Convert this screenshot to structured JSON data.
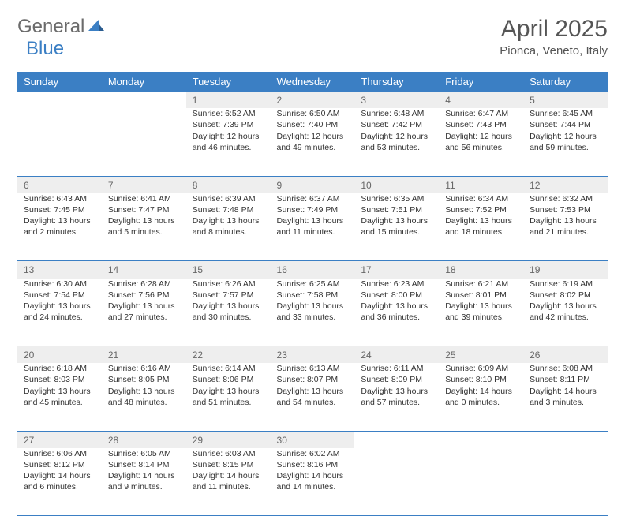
{
  "brand": {
    "part1": "General",
    "part2": "Blue"
  },
  "title": "April 2025",
  "location": "Pionca, Veneto, Italy",
  "colors": {
    "header_bg": "#3b7fc4",
    "header_text": "#ffffff",
    "daynum_bg": "#eeeeee",
    "daynum_text": "#666666",
    "body_text": "#333333",
    "divider": "#3b7fc4",
    "page_bg": "#ffffff",
    "logo_gray": "#6b6b6b",
    "logo_blue": "#3b7fc4"
  },
  "day_headers": [
    "Sunday",
    "Monday",
    "Tuesday",
    "Wednesday",
    "Thursday",
    "Friday",
    "Saturday"
  ],
  "weeks": [
    [
      null,
      null,
      {
        "n": "1",
        "sr": "Sunrise: 6:52 AM",
        "ss": "Sunset: 7:39 PM",
        "d1": "Daylight: 12 hours",
        "d2": "and 46 minutes."
      },
      {
        "n": "2",
        "sr": "Sunrise: 6:50 AM",
        "ss": "Sunset: 7:40 PM",
        "d1": "Daylight: 12 hours",
        "d2": "and 49 minutes."
      },
      {
        "n": "3",
        "sr": "Sunrise: 6:48 AM",
        "ss": "Sunset: 7:42 PM",
        "d1": "Daylight: 12 hours",
        "d2": "and 53 minutes."
      },
      {
        "n": "4",
        "sr": "Sunrise: 6:47 AM",
        "ss": "Sunset: 7:43 PM",
        "d1": "Daylight: 12 hours",
        "d2": "and 56 minutes."
      },
      {
        "n": "5",
        "sr": "Sunrise: 6:45 AM",
        "ss": "Sunset: 7:44 PM",
        "d1": "Daylight: 12 hours",
        "d2": "and 59 minutes."
      }
    ],
    [
      {
        "n": "6",
        "sr": "Sunrise: 6:43 AM",
        "ss": "Sunset: 7:45 PM",
        "d1": "Daylight: 13 hours",
        "d2": "and 2 minutes."
      },
      {
        "n": "7",
        "sr": "Sunrise: 6:41 AM",
        "ss": "Sunset: 7:47 PM",
        "d1": "Daylight: 13 hours",
        "d2": "and 5 minutes."
      },
      {
        "n": "8",
        "sr": "Sunrise: 6:39 AM",
        "ss": "Sunset: 7:48 PM",
        "d1": "Daylight: 13 hours",
        "d2": "and 8 minutes."
      },
      {
        "n": "9",
        "sr": "Sunrise: 6:37 AM",
        "ss": "Sunset: 7:49 PM",
        "d1": "Daylight: 13 hours",
        "d2": "and 11 minutes."
      },
      {
        "n": "10",
        "sr": "Sunrise: 6:35 AM",
        "ss": "Sunset: 7:51 PM",
        "d1": "Daylight: 13 hours",
        "d2": "and 15 minutes."
      },
      {
        "n": "11",
        "sr": "Sunrise: 6:34 AM",
        "ss": "Sunset: 7:52 PM",
        "d1": "Daylight: 13 hours",
        "d2": "and 18 minutes."
      },
      {
        "n": "12",
        "sr": "Sunrise: 6:32 AM",
        "ss": "Sunset: 7:53 PM",
        "d1": "Daylight: 13 hours",
        "d2": "and 21 minutes."
      }
    ],
    [
      {
        "n": "13",
        "sr": "Sunrise: 6:30 AM",
        "ss": "Sunset: 7:54 PM",
        "d1": "Daylight: 13 hours",
        "d2": "and 24 minutes."
      },
      {
        "n": "14",
        "sr": "Sunrise: 6:28 AM",
        "ss": "Sunset: 7:56 PM",
        "d1": "Daylight: 13 hours",
        "d2": "and 27 minutes."
      },
      {
        "n": "15",
        "sr": "Sunrise: 6:26 AM",
        "ss": "Sunset: 7:57 PM",
        "d1": "Daylight: 13 hours",
        "d2": "and 30 minutes."
      },
      {
        "n": "16",
        "sr": "Sunrise: 6:25 AM",
        "ss": "Sunset: 7:58 PM",
        "d1": "Daylight: 13 hours",
        "d2": "and 33 minutes."
      },
      {
        "n": "17",
        "sr": "Sunrise: 6:23 AM",
        "ss": "Sunset: 8:00 PM",
        "d1": "Daylight: 13 hours",
        "d2": "and 36 minutes."
      },
      {
        "n": "18",
        "sr": "Sunrise: 6:21 AM",
        "ss": "Sunset: 8:01 PM",
        "d1": "Daylight: 13 hours",
        "d2": "and 39 minutes."
      },
      {
        "n": "19",
        "sr": "Sunrise: 6:19 AM",
        "ss": "Sunset: 8:02 PM",
        "d1": "Daylight: 13 hours",
        "d2": "and 42 minutes."
      }
    ],
    [
      {
        "n": "20",
        "sr": "Sunrise: 6:18 AM",
        "ss": "Sunset: 8:03 PM",
        "d1": "Daylight: 13 hours",
        "d2": "and 45 minutes."
      },
      {
        "n": "21",
        "sr": "Sunrise: 6:16 AM",
        "ss": "Sunset: 8:05 PM",
        "d1": "Daylight: 13 hours",
        "d2": "and 48 minutes."
      },
      {
        "n": "22",
        "sr": "Sunrise: 6:14 AM",
        "ss": "Sunset: 8:06 PM",
        "d1": "Daylight: 13 hours",
        "d2": "and 51 minutes."
      },
      {
        "n": "23",
        "sr": "Sunrise: 6:13 AM",
        "ss": "Sunset: 8:07 PM",
        "d1": "Daylight: 13 hours",
        "d2": "and 54 minutes."
      },
      {
        "n": "24",
        "sr": "Sunrise: 6:11 AM",
        "ss": "Sunset: 8:09 PM",
        "d1": "Daylight: 13 hours",
        "d2": "and 57 minutes."
      },
      {
        "n": "25",
        "sr": "Sunrise: 6:09 AM",
        "ss": "Sunset: 8:10 PM",
        "d1": "Daylight: 14 hours",
        "d2": "and 0 minutes."
      },
      {
        "n": "26",
        "sr": "Sunrise: 6:08 AM",
        "ss": "Sunset: 8:11 PM",
        "d1": "Daylight: 14 hours",
        "d2": "and 3 minutes."
      }
    ],
    [
      {
        "n": "27",
        "sr": "Sunrise: 6:06 AM",
        "ss": "Sunset: 8:12 PM",
        "d1": "Daylight: 14 hours",
        "d2": "and 6 minutes."
      },
      {
        "n": "28",
        "sr": "Sunrise: 6:05 AM",
        "ss": "Sunset: 8:14 PM",
        "d1": "Daylight: 14 hours",
        "d2": "and 9 minutes."
      },
      {
        "n": "29",
        "sr": "Sunrise: 6:03 AM",
        "ss": "Sunset: 8:15 PM",
        "d1": "Daylight: 14 hours",
        "d2": "and 11 minutes."
      },
      {
        "n": "30",
        "sr": "Sunrise: 6:02 AM",
        "ss": "Sunset: 8:16 PM",
        "d1": "Daylight: 14 hours",
        "d2": "and 14 minutes."
      },
      null,
      null,
      null
    ]
  ]
}
